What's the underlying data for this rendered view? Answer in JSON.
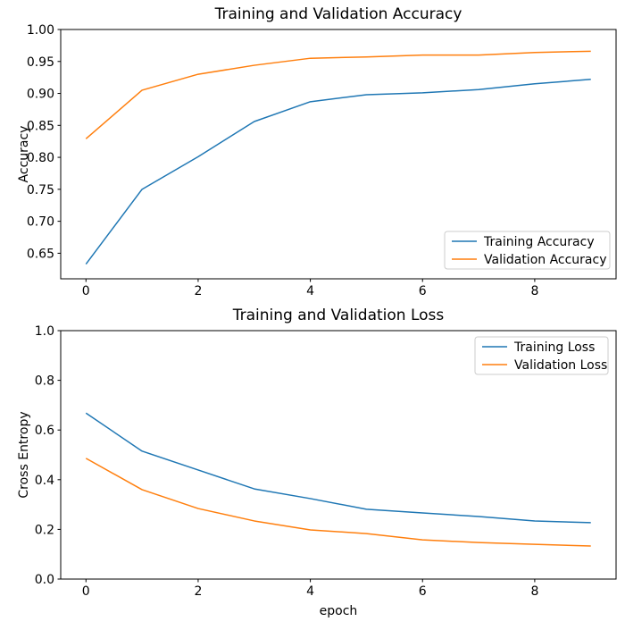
{
  "figure": {
    "background": "#ffffff",
    "text_color": "#000000",
    "spine_color": "#000000",
    "legend_border_color": "#cccccc"
  },
  "chart_data": [
    {
      "type": "line",
      "title": "Training and Validation Accuracy",
      "xlabel": "",
      "ylabel": "Accuracy",
      "x": [
        0,
        1,
        2,
        3,
        4,
        5,
        6,
        7,
        8,
        9
      ],
      "series": [
        {
          "name": "Training Accuracy",
          "color": "#1f77b4",
          "values": [
            0.633,
            0.75,
            0.801,
            0.856,
            0.887,
            0.898,
            0.901,
            0.906,
            0.915,
            0.922
          ]
        },
        {
          "name": "Validation Accuracy",
          "color": "#ff7f0e",
          "values": [
            0.829,
            0.905,
            0.93,
            0.944,
            0.955,
            0.957,
            0.96,
            0.96,
            0.964,
            0.966
          ]
        }
      ],
      "xlim": [
        -0.45,
        9.45
      ],
      "ylim": [
        0.61,
        1.0
      ],
      "xticks": {
        "values": [
          0,
          2,
          4,
          6,
          8
        ],
        "labels": [
          "0",
          "2",
          "4",
          "6",
          "8"
        ]
      },
      "yticks": {
        "values": [
          0.65,
          0.7,
          0.75,
          0.8,
          0.85,
          0.9,
          0.95,
          1.0
        ],
        "labels": [
          "0.65",
          "0.70",
          "0.75",
          "0.80",
          "0.85",
          "0.90",
          "0.95",
          "1.00"
        ]
      },
      "legend_position": "lower right",
      "grid": false
    },
    {
      "type": "line",
      "title": "Training and Validation Loss",
      "xlabel": "epoch",
      "ylabel": "Cross Entropy",
      "x": [
        0,
        1,
        2,
        3,
        4,
        5,
        6,
        7,
        8,
        9
      ],
      "series": [
        {
          "name": "Training Loss",
          "color": "#1f77b4",
          "values": [
            0.668,
            0.515,
            0.439,
            0.363,
            0.324,
            0.281,
            0.266,
            0.252,
            0.234,
            0.227
          ]
        },
        {
          "name": "Validation Loss",
          "color": "#ff7f0e",
          "values": [
            0.486,
            0.36,
            0.284,
            0.234,
            0.198,
            0.183,
            0.158,
            0.147,
            0.14,
            0.133
          ]
        }
      ],
      "xlim": [
        -0.45,
        9.45
      ],
      "ylim": [
        0.0,
        1.0
      ],
      "xticks": {
        "values": [
          0,
          2,
          4,
          6,
          8
        ],
        "labels": [
          "0",
          "2",
          "4",
          "6",
          "8"
        ]
      },
      "yticks": {
        "values": [
          0.0,
          0.2,
          0.4,
          0.6,
          0.8,
          1.0
        ],
        "labels": [
          "0.0",
          "0.2",
          "0.4",
          "0.6",
          "0.8",
          "1.0"
        ]
      },
      "legend_position": "upper right",
      "grid": false
    }
  ]
}
